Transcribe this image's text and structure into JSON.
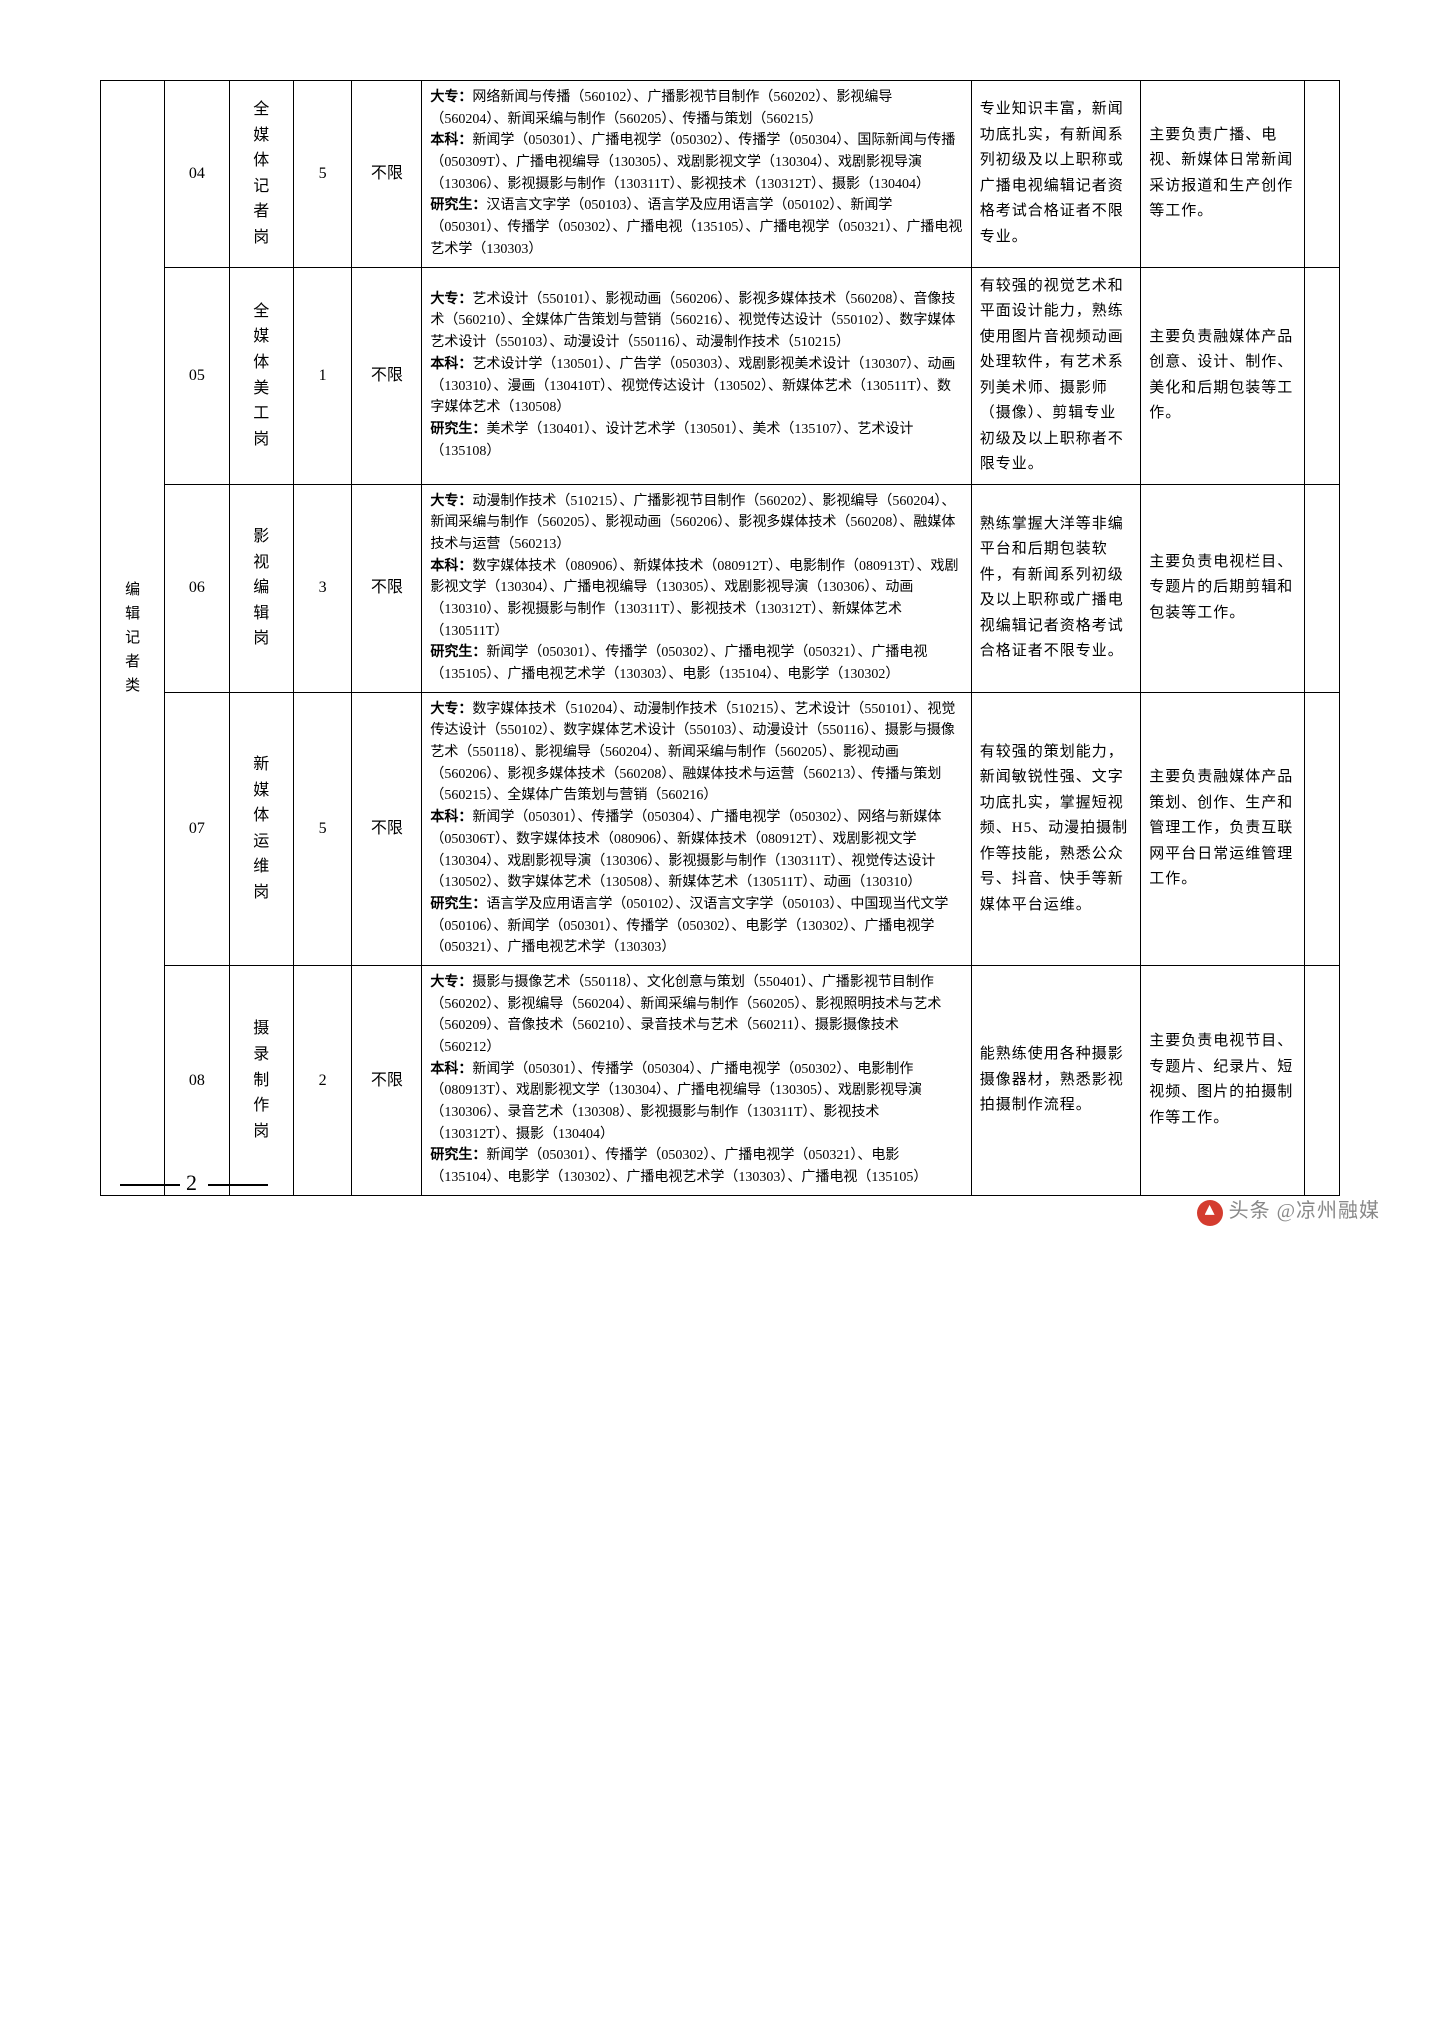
{
  "category": "编辑记者类",
  "page_number": "2",
  "watermark": "头条 @凉州融媒",
  "unlimited": "不限",
  "rows": [
    {
      "code": "04",
      "position": "全媒体记者岗",
      "count": "5",
      "major": "大专：网络新闻与传播（560102）、广播影视节目制作（560202）、影视编导（560204）、新闻采编与制作（560205）、传播与策划（560215）\n本科：新闻学（050301）、广播电视学（050302）、传播学（050304）、国际新闻与传播（050309T）、广播电视编导（130305）、戏剧影视文学（130304）、戏剧影视导演（130306）、影视摄影与制作（130311T）、影视技术（130312T）、摄影（130404）\n研究生：汉语言文字学（050103）、语言学及应用语言学（050102）、新闻学（050301）、传播学（050302）、广播电视（135105）、广播电视学（050321）、广播电视艺术学（130303）",
      "requirement": "专业知识丰富，新闻功底扎实，有新闻系列初级及以上职称或广播电视编辑记者资格考试合格证者不限专业。",
      "duty": "主要负责广播、电视、新媒体日常新闻采访报道和生产创作等工作。"
    },
    {
      "code": "05",
      "position": "全媒体美工岗",
      "count": "1",
      "major": "大专：艺术设计（550101）、影视动画（560206）、影视多媒体技术（560208）、音像技术（560210）、全媒体广告策划与营销（560216）、视觉传达设计（550102）、数字媒体艺术设计（550103）、动漫设计（550116）、动漫制作技术（510215）\n本科：艺术设计学（130501）、广告学（050303）、戏剧影视美术设计（130307）、动画（130310）、漫画（130410T）、视觉传达设计（130502）、新媒体艺术（130511T）、数字媒体艺术（130508）\n研究生：美术学（130401）、设计艺术学（130501）、美术（135107）、艺术设计（135108）",
      "requirement": "有较强的视觉艺术和平面设计能力，熟练使用图片音视频动画处理软件，有艺术系列美术师、摄影师（摄像）、剪辑专业初级及以上职称者不限专业。",
      "duty": "主要负责融媒体产品创意、设计、制作、美化和后期包装等工作。"
    },
    {
      "code": "06",
      "position": "影视编辑岗",
      "count": "3",
      "major": "大专：动漫制作技术（510215）、广播影视节目制作（560202）、影视编导（560204）、新闻采编与制作（560205）、影视动画（560206）、影视多媒体技术（560208）、融媒体技术与运营（560213）\n本科：数字媒体技术（080906）、新媒体技术（080912T）、电影制作（080913T）、戏剧影视文学（130304）、广播电视编导（130305）、戏剧影视导演（130306）、动画（130310）、影视摄影与制作（130311T）、影视技术（130312T）、新媒体艺术（130511T）\n研究生：新闻学（050301）、传播学（050302）、广播电视学（050321）、广播电视（135105）、广播电视艺术学（130303）、电影（135104）、电影学（130302）",
      "requirement": "熟练掌握大洋等非编平台和后期包装软件，有新闻系列初级及以上职称或广播电视编辑记者资格考试合格证者不限专业。",
      "duty": "主要负责电视栏目、专题片的后期剪辑和包装等工作。"
    },
    {
      "code": "07",
      "position": "新媒体运维岗",
      "count": "5",
      "major": "大专：数字媒体技术（510204）、动漫制作技术（510215）、艺术设计（550101）、视觉传达设计（550102）、数字媒体艺术设计（550103）、动漫设计（550116）、摄影与摄像艺术（550118）、影视编导（560204）、新闻采编与制作（560205）、影视动画（560206）、影视多媒体技术（560208）、融媒体技术与运营（560213）、传播与策划（560215）、全媒体广告策划与营销（560216）\n本科：新闻学（050301）、传播学（050304）、广播电视学（050302）、网络与新媒体（050306T）、数字媒体技术（080906）、新媒体技术（080912T）、戏剧影视文学（130304）、戏剧影视导演（130306）、影视摄影与制作（130311T）、视觉传达设计（130502）、数字媒体艺术（130508）、新媒体艺术（130511T）、动画（130310）\n研究生：语言学及应用语言学（050102）、汉语言文字学（050103）、中国现当代文学（050106）、新闻学（050301）、传播学（050302）、电影学（130302）、广播电视学（050321）、广播电视艺术学（130303）",
      "requirement": "有较强的策划能力，新闻敏锐性强、文字功底扎实，掌握短视频、H5、动漫拍摄制作等技能，熟悉公众号、抖音、快手等新媒体平台运维。",
      "duty": "主要负责融媒体产品策划、创作、生产和管理工作，负责互联网平台日常运维管理工作。"
    },
    {
      "code": "08",
      "position": "摄录制作岗",
      "count": "2",
      "major": "大专：摄影与摄像艺术（550118）、文化创意与策划（550401）、广播影视节目制作（560202）、影视编导（560204）、新闻采编与制作（560205）、影视照明技术与艺术（560209）、音像技术（560210）、录音技术与艺术（560211）、摄影摄像技术（560212）\n本科：新闻学（050301）、传播学（050304）、广播电视学（050302）、电影制作（080913T）、戏剧影视文学（130304）、广播电视编导（130305）、戏剧影视导演（130306）、录音艺术（130308）、影视摄影与制作（130311T）、影视技术（130312T）、摄影（130404）\n研究生：新闻学（050301）、传播学（050302）、广播电视学（050321）、电影（135104）、电影学（130302）、广播电视艺术学（130303）、广播电视（135105）",
      "requirement": "能熟练使用各种摄影摄像器材，熟悉影视拍摄制作流程。",
      "duty": "主要负责电视节目、专题片、纪录片、短视频、图片的拍摄制作等工作。"
    }
  ]
}
